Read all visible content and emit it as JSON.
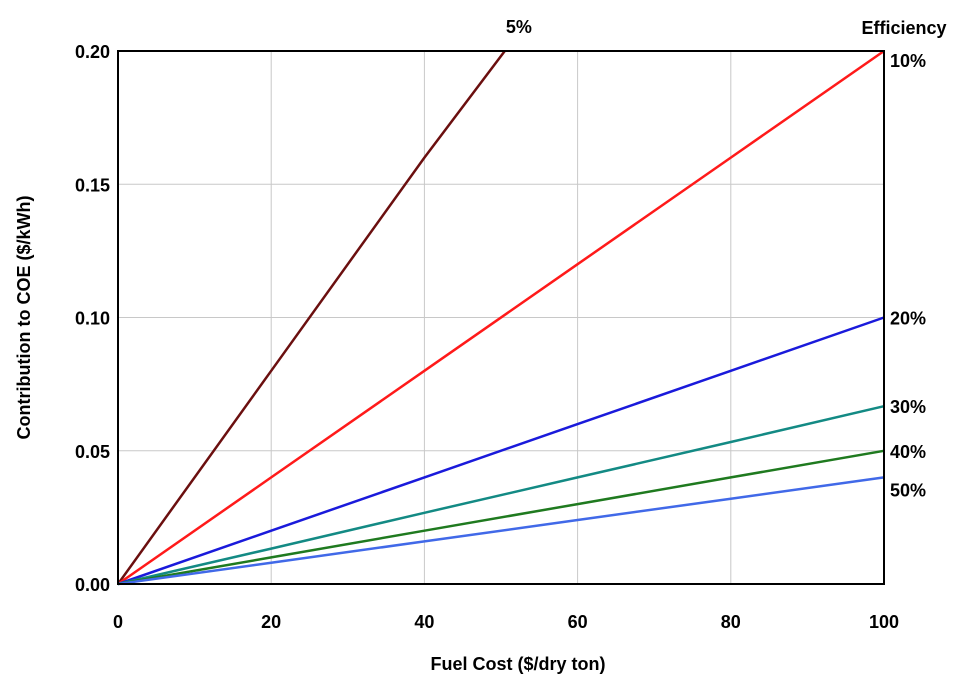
{
  "chart_data": {
    "type": "line",
    "title": "",
    "xlabel": "Fuel Cost ($/dry ton)",
    "ylabel": "Contribution to COE ($/kWh)",
    "xlim": [
      0,
      100
    ],
    "ylim": [
      0,
      0.2
    ],
    "x_ticks": [
      "0",
      "20",
      "40",
      "60",
      "80",
      "100"
    ],
    "y_ticks": [
      "0.00",
      "0.05",
      "0.10",
      "0.15",
      "0.20"
    ],
    "grid": true,
    "legend_title": "Efficiency",
    "series": [
      {
        "name": "5%",
        "color": "#6b0f0f",
        "x": [
          0,
          20,
          40,
          50.5
        ],
        "y": [
          0,
          0.08,
          0.16,
          0.2
        ]
      },
      {
        "name": "10%",
        "color": "#ff1a1a",
        "x": [
          0,
          20,
          40,
          60,
          80,
          100
        ],
        "y": [
          0,
          0.04,
          0.08,
          0.12,
          0.16,
          0.2
        ]
      },
      {
        "name": "20%",
        "color": "#1a1adb",
        "x": [
          0,
          20,
          40,
          60,
          80,
          100
        ],
        "y": [
          0,
          0.02,
          0.04,
          0.06,
          0.08,
          0.1
        ]
      },
      {
        "name": "30%",
        "color": "#138a84",
        "x": [
          0,
          20,
          40,
          60,
          80,
          100
        ],
        "y": [
          0,
          0.0133,
          0.0267,
          0.04,
          0.0533,
          0.0667
        ]
      },
      {
        "name": "40%",
        "color": "#1f7a1f",
        "x": [
          0,
          20,
          40,
          60,
          80,
          100
        ],
        "y": [
          0,
          0.01,
          0.02,
          0.03,
          0.04,
          0.05
        ]
      },
      {
        "name": "50%",
        "color": "#4169e8",
        "x": [
          0,
          20,
          40,
          60,
          80,
          100
        ],
        "y": [
          0,
          0.008,
          0.016,
          0.024,
          0.032,
          0.04
        ]
      }
    ]
  }
}
